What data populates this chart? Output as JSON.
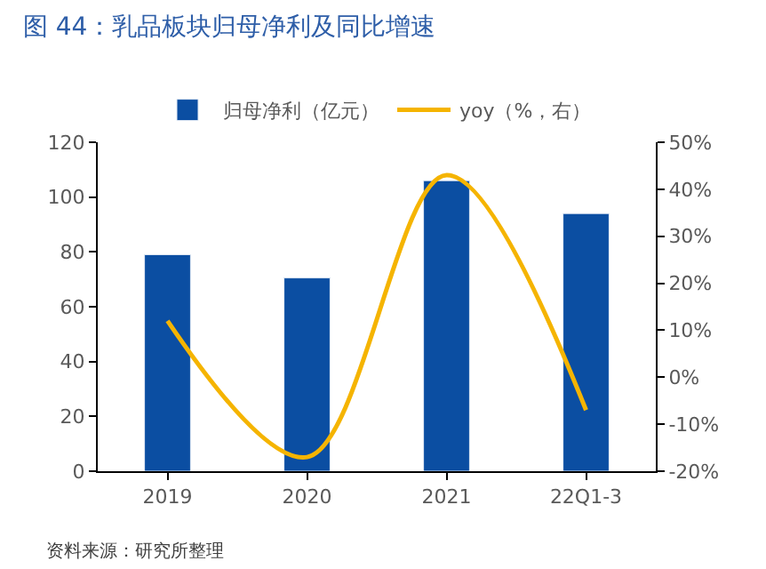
{
  "chart_data": {
    "type": "bar",
    "title": "图 44：乳品板块归母净利及同比增速",
    "categories": [
      "2019",
      "2020",
      "2021",
      "22Q1-3"
    ],
    "series": [
      {
        "name": "归母净利（亿元）",
        "color": "#0b4ea2",
        "values": [
          79,
          70.5,
          106,
          94
        ]
      },
      {
        "name": "yoy（%，右）",
        "type": "line",
        "axis": "y2",
        "color": "#f5b400",
        "values": [
          12,
          -17,
          43,
          -7
        ],
        "marker": "none"
      }
    ],
    "ylim": [
      0,
      120
    ],
    "yticks": [
      0,
      20,
      40,
      60,
      80,
      100,
      120
    ],
    "y2lim": [
      -20,
      50
    ],
    "y2ticks": [
      {
        "value": -20,
        "label": "-20%"
      },
      {
        "value": -10,
        "label": "-10%"
      },
      {
        "value": 0,
        "label": "0%"
      },
      {
        "value": 10,
        "label": "10%"
      },
      {
        "value": 20,
        "label": "20%"
      },
      {
        "value": 30,
        "label": "30%"
      },
      {
        "value": 40,
        "label": "40%"
      },
      {
        "value": 50,
        "label": "50%"
      }
    ],
    "legend": "top",
    "annotations": [
      "资料来源：研究所整理"
    ]
  }
}
